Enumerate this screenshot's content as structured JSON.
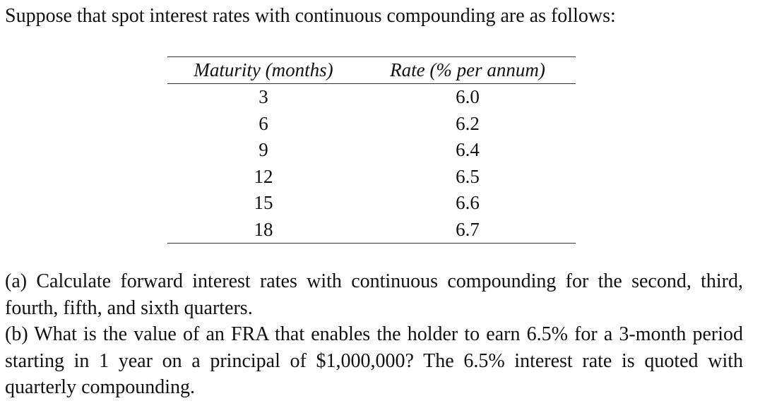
{
  "intro": "Suppose that spot interest rates with continuous compounding are as follows:",
  "table": {
    "headers": [
      "Maturity (months)",
      "Rate (% per annum)"
    ],
    "rows": [
      [
        "3",
        "6.0"
      ],
      [
        "6",
        "6.2"
      ],
      [
        "9",
        "6.4"
      ],
      [
        "12",
        "6.5"
      ],
      [
        "15",
        "6.6"
      ],
      [
        "18",
        "6.7"
      ]
    ]
  },
  "questions": {
    "a": "(a) Calculate forward interest rates with continuous compounding for the second, third, fourth, fifth, and sixth quarters.",
    "b": "(b) What is the value of an FRA that enables the holder to earn 6.5% for a 3-month period starting in 1 year on a principal of $1,000,000? The 6.5% interest rate is quoted with quarterly compounding."
  }
}
